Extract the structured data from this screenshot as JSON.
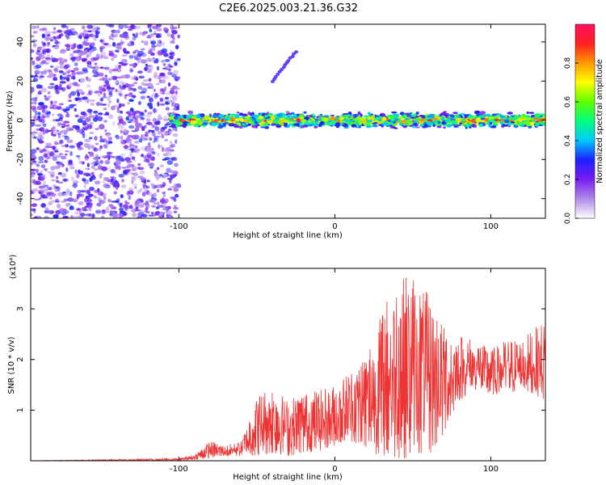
{
  "figure": {
    "title": "C2E6.2025.003.21.36.G32"
  },
  "chart_data": [
    {
      "type": "heatmap",
      "xlabel": "Height of straight line (km)",
      "ylabel": "Frequency (Hz)",
      "xlim": [
        -195,
        135
      ],
      "ylim": [
        -50,
        49
      ],
      "xticks": [
        -100,
        0,
        100
      ],
      "yticks": [
        -40,
        -20,
        0,
        20,
        40
      ],
      "colorbar": {
        "label": "Normalized spectral amplitude",
        "range": [
          0.0,
          1.0
        ],
        "ticks": [
          "0.0",
          "0.2",
          "0.4",
          "0.6",
          "0.8"
        ],
        "tick_values": [
          0.0,
          0.2,
          0.4,
          0.6,
          0.8
        ],
        "colors": [
          "#ffffff",
          "#b08ae8",
          "#7a1ef0",
          "#1e1eff",
          "#00c8ff",
          "#00ff80",
          "#60ff00",
          "#ffff00",
          "#ff9a00",
          "#ff2020",
          "#ff1060"
        ]
      },
      "regions": [
        {
          "label": "noise",
          "x_range": [
            -195,
            -100
          ],
          "y_range": [
            -50,
            49
          ],
          "amplitude": 0.2
        },
        {
          "label": "signal band",
          "x_range": [
            -105,
            135
          ],
          "center_freq": 0,
          "half_width": 3,
          "amplitude": 0.7
        },
        {
          "label": "streak",
          "x_from": -40,
          "y_from": 20,
          "x_to": -25,
          "y_to": 35,
          "amplitude": 0.25
        }
      ],
      "grid": false
    },
    {
      "type": "line",
      "xlabel": "Height of straight line (km)",
      "ylabel": "SNR (10 * v/v)",
      "y_multiplier": "(x10⁴)",
      "xlim": [
        -195,
        135
      ],
      "ylim": [
        0,
        3.8
      ],
      "xticks": [
        -100,
        0,
        100
      ],
      "yticks": [
        1,
        2,
        3
      ],
      "color": "#ee3333",
      "envelope": {
        "x": [
          -195,
          -100,
          -90,
          -80,
          -70,
          -60,
          -50,
          -40,
          -30,
          -20,
          -10,
          0,
          10,
          20,
          30,
          40,
          50,
          60,
          70,
          80,
          90,
          100,
          110,
          120,
          135
        ],
        "min": [
          0,
          0,
          0.02,
          0.05,
          0.08,
          0.1,
          0.1,
          0.15,
          0.1,
          0.15,
          0.2,
          0.3,
          0.4,
          0.2,
          0.1,
          0.05,
          0.05,
          0.1,
          0.5,
          1.2,
          1.4,
          1.3,
          1.3,
          1.4,
          1.2
        ],
        "max": [
          0,
          0.05,
          0.12,
          0.4,
          0.3,
          0.4,
          1.3,
          1.5,
          1.2,
          1.4,
          1.4,
          1.5,
          1.8,
          2.2,
          3.0,
          3.7,
          3.7,
          3.3,
          2.7,
          2.5,
          2.4,
          2.2,
          2.4,
          2.4,
          2.8
        ]
      },
      "grid": false
    }
  ]
}
